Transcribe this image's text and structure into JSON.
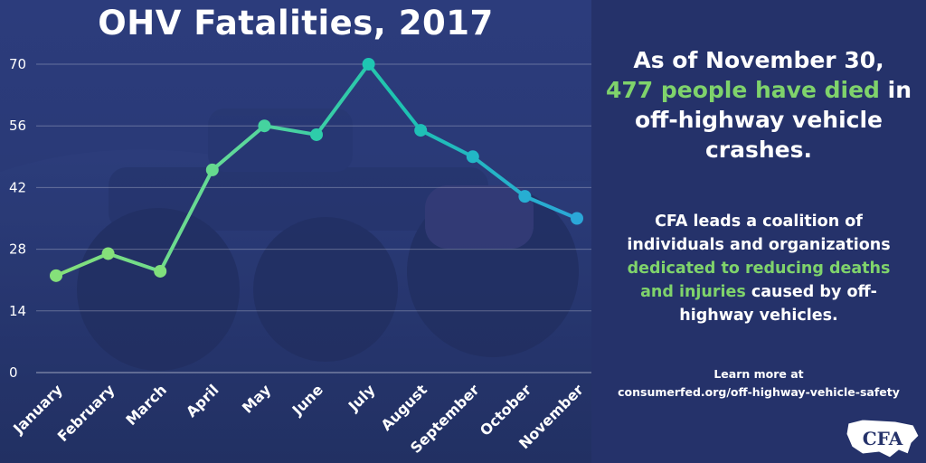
{
  "chart_data": {
    "type": "line",
    "title": "OHV Fatalities, 2017",
    "categories": [
      "January",
      "February",
      "March",
      "April",
      "May",
      "June",
      "July",
      "August",
      "September",
      "October",
      "November"
    ],
    "values": [
      22,
      27,
      23,
      46,
      56,
      54,
      70,
      55,
      49,
      40,
      35
    ],
    "yticks": [
      0,
      14,
      28,
      42,
      56,
      70
    ],
    "ylim": [
      0,
      70
    ],
    "grid": true,
    "line_colors": [
      "#85e07a",
      "#5ed89a",
      "#1dc4b0",
      "#2ba7d8"
    ]
  },
  "right_panel": {
    "headline_line1": "As of November 30,",
    "headline_highlight": "477 people have died",
    "headline_after_highlight": " in",
    "headline_line3": "off-highway vehicle",
    "headline_line4": "crashes.",
    "body_line1": "CFA leads a coalition of",
    "body_line2": "individuals and organizations",
    "body_highlight1": "dedicated to reducing deaths",
    "body_highlight2": "and injuries",
    "body_after_highlight": " caused by off-",
    "body_line5": "highway vehicles.",
    "learn_more": "Learn more at",
    "url": "consumerfed.org/off-highway-vehicle-safety",
    "logo_text": "CFA"
  }
}
